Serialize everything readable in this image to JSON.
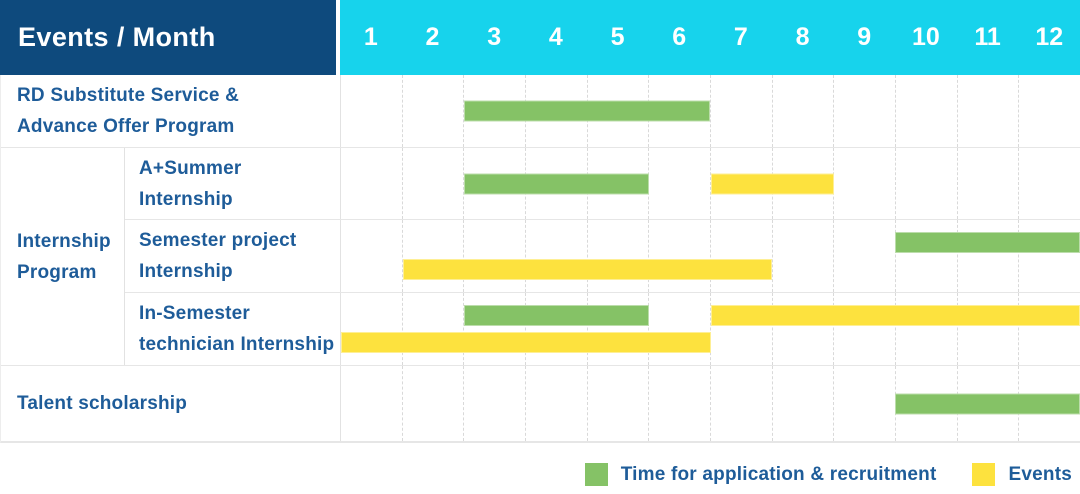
{
  "colors": {
    "header_bg": "#0e4a7d",
    "month_header_bg": "#17d3ec",
    "recruitment_green": "#85c266",
    "events_yellow": "#fde23e",
    "label_text_blue": "#1e5c99"
  },
  "chart_data": {
    "type": "gantt",
    "title": "Events / Month",
    "x_axis": {
      "label": "Month",
      "ticks": [
        "1",
        "2",
        "3",
        "4",
        "5",
        "6",
        "7",
        "8",
        "9",
        "10",
        "11",
        "12"
      ],
      "range": [
        1,
        12
      ]
    },
    "legend_position": "bottom-right",
    "legend": [
      {
        "series": "recruitment",
        "label": "Time for application & recruitment",
        "color": "#85c266"
      },
      {
        "series": "events",
        "label": "Events",
        "color": "#fde23e"
      }
    ],
    "rows": [
      {
        "event": "RD Substitute Service & Advance Offer Program",
        "group": null,
        "bars": [
          {
            "series": "recruitment",
            "start_month": 3,
            "end_month": 6
          }
        ]
      },
      {
        "event": "A+Summer Internship",
        "group": "Internship Program",
        "bars": [
          {
            "series": "recruitment",
            "start_month": 3,
            "end_month": 5
          },
          {
            "series": "events",
            "start_month": 7,
            "end_month": 8
          }
        ]
      },
      {
        "event": "Semester project Internship",
        "group": "Internship Program",
        "bars": [
          {
            "series": "recruitment",
            "start_month": 10,
            "end_month": 12
          },
          {
            "series": "events",
            "start_month": 2,
            "end_month": 7
          }
        ]
      },
      {
        "event": "In-Semester technician Internship",
        "group": "Internship Program",
        "bars": [
          {
            "series": "recruitment",
            "start_month": 3,
            "end_month": 5
          },
          {
            "series": "events",
            "start_month": 7,
            "end_month": 12
          },
          {
            "series": "events",
            "start_month": 1,
            "end_month": 6
          }
        ]
      },
      {
        "event": "Talent scholarship",
        "group": null,
        "bars": [
          {
            "series": "recruitment",
            "start_month": 10,
            "end_month": 12
          }
        ]
      }
    ]
  },
  "table": {
    "header_label": "Events / Month",
    "months": [
      "1",
      "2",
      "3",
      "4",
      "5",
      "6",
      "7",
      "8",
      "9",
      "10",
      "11",
      "12"
    ],
    "sections": [
      {
        "kind": "row",
        "name": "rd-substitute-row",
        "height": 73,
        "label_lines": [
          "RD Substitute Service &",
          "Advance Offer Program"
        ],
        "bars": [
          {
            "series": "recruitment",
            "start_month": 3,
            "end_month": 6,
            "lane": "center"
          }
        ]
      },
      {
        "kind": "group",
        "name": "internship-program-group",
        "label_lines": [
          "Internship",
          "Program"
        ],
        "rows": [
          {
            "name": "a-plus-summer-internship-row",
            "height": 72,
            "label_lines": [
              "A+Summer",
              "Internship"
            ],
            "bars": [
              {
                "series": "recruitment",
                "start_month": 3,
                "end_month": 5,
                "lane": "center"
              },
              {
                "series": "events",
                "start_month": 7,
                "end_month": 8,
                "lane": "center"
              }
            ]
          },
          {
            "name": "semester-project-internship-row",
            "height": 73,
            "label_lines": [
              "Semester project",
              "Internship"
            ],
            "bars": [
              {
                "series": "recruitment",
                "start_month": 10,
                "end_month": 12,
                "lane": "upper"
              },
              {
                "series": "events",
                "start_month": 2,
                "end_month": 7,
                "lane": "lower"
              }
            ]
          },
          {
            "name": "in-semester-technician-internship-row",
            "height": 72,
            "label_lines": [
              "In-Semester",
              "technician Internship"
            ],
            "bars": [
              {
                "series": "recruitment",
                "start_month": 3,
                "end_month": 5,
                "lane": "upper"
              },
              {
                "series": "events",
                "start_month": 7,
                "end_month": 12,
                "lane": "upper"
              },
              {
                "series": "events",
                "start_month": 1,
                "end_month": 6,
                "lane": "lower"
              }
            ]
          }
        ]
      },
      {
        "kind": "row",
        "name": "talent-scholarship-row",
        "height": 76,
        "label_lines": [
          "Talent scholarship"
        ],
        "bars": [
          {
            "series": "recruitment",
            "start_month": 10,
            "end_month": 12,
            "lane": "center"
          }
        ]
      }
    ],
    "legend": [
      {
        "series": "recruitment",
        "label": "Time for application & recruitment"
      },
      {
        "series": "events",
        "label": "Events"
      }
    ]
  }
}
